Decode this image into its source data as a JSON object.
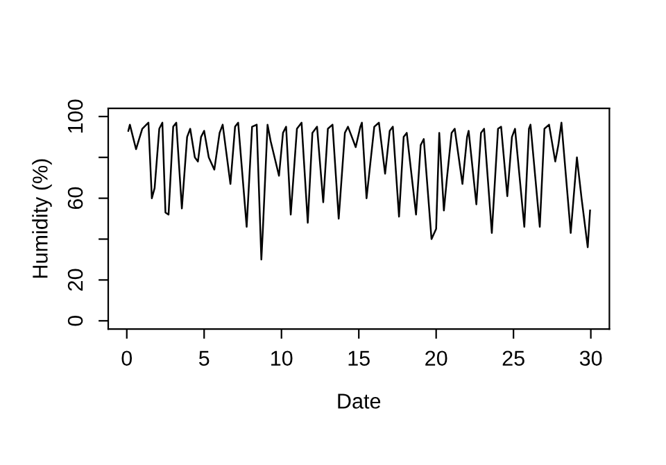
{
  "chart_data": {
    "type": "line",
    "xlabel": "Date",
    "ylabel": "Humidity (%)",
    "xlim": [
      -1.2,
      31.2
    ],
    "ylim": [
      -4,
      104
    ],
    "xticks": [
      0,
      5,
      10,
      15,
      20,
      25,
      30
    ],
    "yticks": [
      0,
      20,
      {
        "value": 40,
        "label": null
      },
      60,
      {
        "value": 80,
        "label": null
      },
      100
    ],
    "grid": false,
    "legend": false,
    "marker": "none",
    "line_style": "solid",
    "series": [
      {
        "color": "#000000",
        "x": [
          0.1,
          0.2,
          0.4,
          0.6,
          1.0,
          1.4,
          1.62,
          1.8,
          2.1,
          2.3,
          2.5,
          2.7,
          3.0,
          3.2,
          3.56,
          3.9,
          4.1,
          4.4,
          4.6,
          4.8,
          5.0,
          5.3,
          5.66,
          6.0,
          6.2,
          6.7,
          7.0,
          7.2,
          7.75,
          8.1,
          8.4,
          8.7,
          8.8,
          9.1,
          9.3,
          9.84,
          10.1,
          10.3,
          10.6,
          11.0,
          11.3,
          11.7,
          12.0,
          12.3,
          12.7,
          13.0,
          13.3,
          13.7,
          14.1,
          14.3,
          14.8,
          15.1,
          15.2,
          15.5,
          16.0,
          16.3,
          16.7,
          17.0,
          17.2,
          17.6,
          17.9,
          18.1,
          18.7,
          19.0,
          19.2,
          19.7,
          20.0,
          20.2,
          20.5,
          20.7,
          21.0,
          21.2,
          21.7,
          22.0,
          22.1,
          22.6,
          22.9,
          23.1,
          23.6,
          24.0,
          24.2,
          24.6,
          24.9,
          25.1,
          25.7,
          26.0,
          26.1,
          26.7,
          27.0,
          27.3,
          27.7,
          27.9,
          28.1,
          28.7,
          29.1,
          29.4,
          29.8,
          29.95
        ],
        "values": [
          93,
          96,
          90,
          84,
          94,
          97,
          60,
          65,
          94,
          97,
          53,
          52,
          95,
          97,
          55,
          90,
          94,
          80,
          78,
          90,
          93,
          80,
          74,
          92,
          96,
          67,
          95,
          97,
          46,
          95,
          96,
          30,
          45,
          96,
          88,
          71,
          92,
          95,
          52,
          94,
          97,
          48,
          92,
          95,
          58,
          94,
          96,
          50,
          92,
          95,
          85,
          95,
          97,
          60,
          95,
          97,
          72,
          93,
          95,
          51,
          90,
          92,
          52,
          86,
          89,
          40,
          45,
          92,
          54,
          70,
          92,
          94,
          67,
          90,
          93,
          57,
          92,
          94,
          43,
          94,
          95,
          61,
          90,
          94,
          46,
          94,
          96,
          46,
          94,
          96,
          78,
          86,
          97,
          43,
          80,
          60,
          36,
          54
        ]
      }
    ]
  }
}
